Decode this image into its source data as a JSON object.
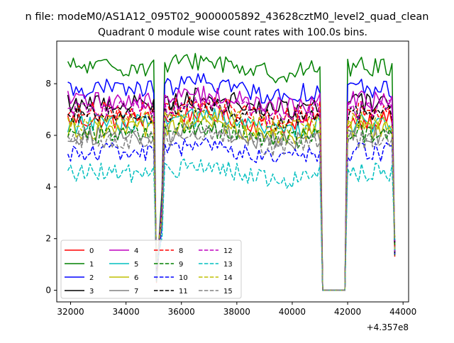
{
  "suptitle": "n file: modeM0/AS1A12_095T02_9000005892_43628cztM0_level2_quad_clean",
  "chart_data": {
    "type": "line",
    "title": "Quadrant 0 module wise count rates with 100.0s bins.",
    "xlabel": "",
    "ylabel": "",
    "x_offset_label": "+4.357e8",
    "xlim": [
      31500,
      44200
    ],
    "ylim": [
      -0.45,
      9.65
    ],
    "xticks": [
      32000,
      34000,
      36000,
      38000,
      40000,
      42000,
      44000
    ],
    "xtick_labels": [
      "32000",
      "34000",
      "36000",
      "38000",
      "40000",
      "42000",
      "44000"
    ],
    "yticks": [
      0,
      2,
      4,
      6,
      8
    ],
    "ytick_labels": [
      "0",
      "2",
      "4",
      "6",
      "8"
    ],
    "grid": false,
    "legend": "lower-left, 4 columns",
    "segments": [
      {
        "x_start": 31900,
        "x_end": 35000,
        "step": 100
      },
      {
        "x_start": 35100,
        "x_end": 35100,
        "step": 100
      },
      {
        "x_start": 35300,
        "x_end": 41000,
        "step": 100
      },
      {
        "x_start": 41100,
        "x_end": 41900,
        "step": 100
      },
      {
        "x_start": 42000,
        "x_end": 43700,
        "step": 100
      }
    ],
    "dip_value": 0,
    "series": [
      {
        "name": "0",
        "color": "#ff0000",
        "dash": "solid",
        "level": 6.6
      },
      {
        "name": "1",
        "color": "#008000",
        "dash": "solid",
        "level": 8.65
      },
      {
        "name": "2",
        "color": "#0000ff",
        "dash": "solid",
        "level": 7.8
      },
      {
        "name": "3",
        "color": "#000000",
        "dash": "solid",
        "level": 7.25
      },
      {
        "name": "4",
        "color": "#bf00bf",
        "dash": "solid",
        "level": 7.35
      },
      {
        "name": "5",
        "color": "#00bfbf",
        "dash": "solid",
        "level": 6.45
      },
      {
        "name": "6",
        "color": "#bfbf00",
        "dash": "solid",
        "level": 6.2
      },
      {
        "name": "7",
        "color": "#808080",
        "dash": "solid",
        "level": 6.0
      },
      {
        "name": "8",
        "color": "#ff0000",
        "dash": "dashed",
        "level": 6.95
      },
      {
        "name": "9",
        "color": "#008000",
        "dash": "dashed",
        "level": 6.05
      },
      {
        "name": "10",
        "color": "#0000ff",
        "dash": "dashed",
        "level": 5.35
      },
      {
        "name": "11",
        "color": "#000000",
        "dash": "dashed",
        "level": 6.85
      },
      {
        "name": "12",
        "color": "#bf00bf",
        "dash": "dashed",
        "level": 7.0
      },
      {
        "name": "13",
        "color": "#00bfbf",
        "dash": "dashed",
        "level": 4.55
      },
      {
        "name": "14",
        "color": "#bfbf00",
        "dash": "dashed",
        "level": 6.55
      },
      {
        "name": "15",
        "color": "#808080",
        "dash": "dashed",
        "level": 5.8
      }
    ]
  }
}
